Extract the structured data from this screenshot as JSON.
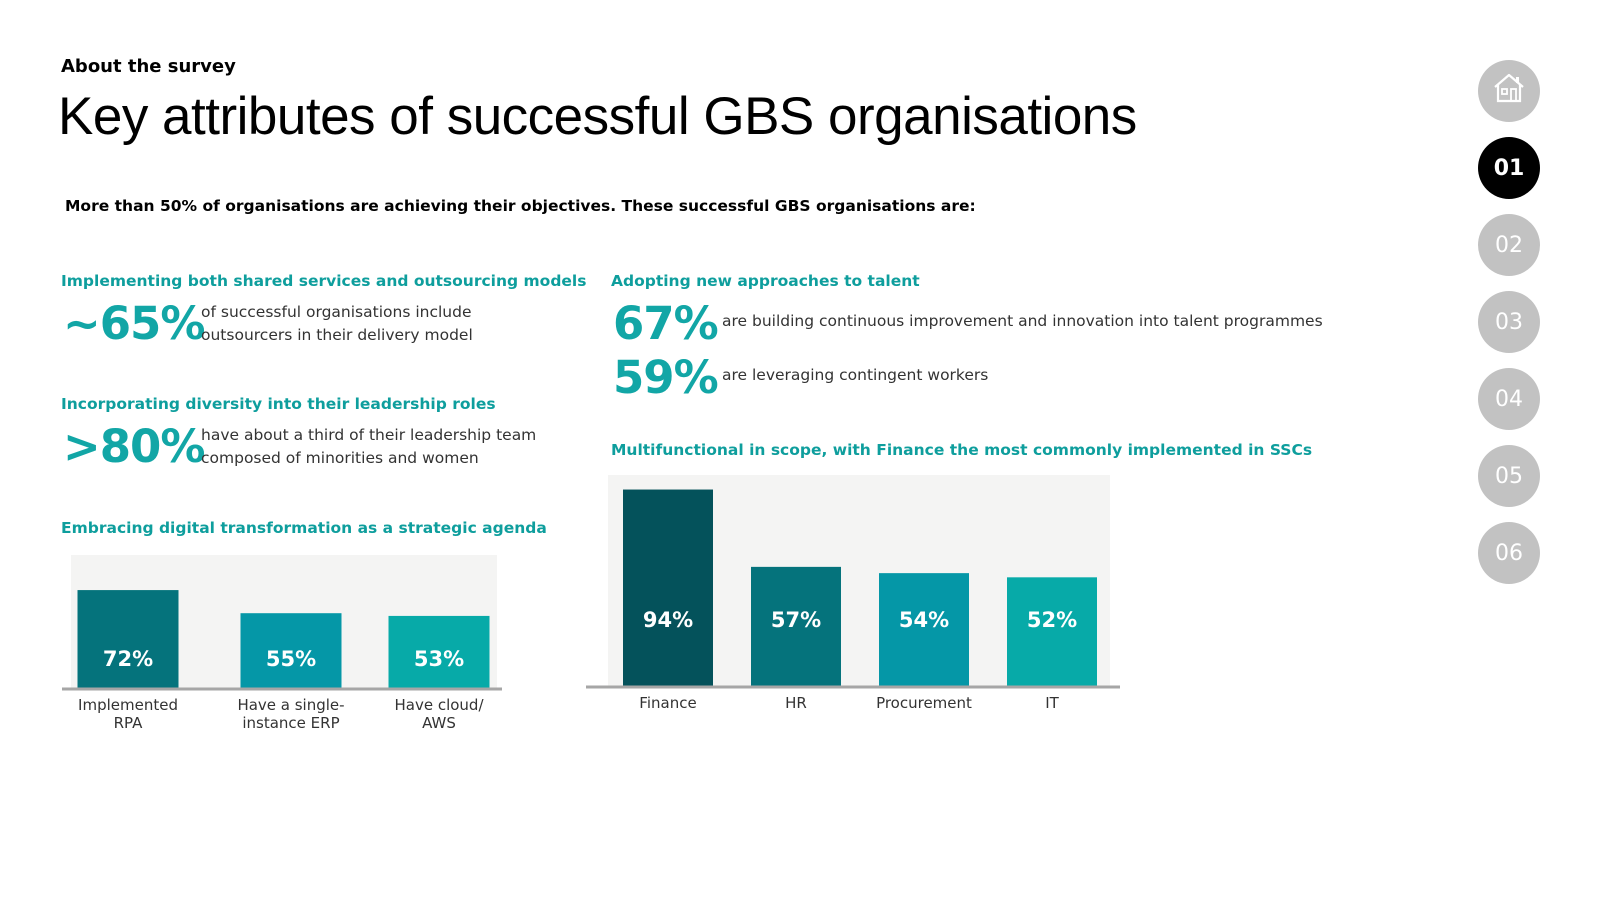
{
  "header": {
    "eyebrow": "About the survey",
    "title": "Key attributes of successful GBS organisations",
    "intro": "More than 50% of organisations are achieving their objectives. These successful GBS organisations are:"
  },
  "left": {
    "sourcing": {
      "heading": "Implementing both shared services and outsourcing models",
      "stat": "~65%",
      "line1": "of successful organisations include",
      "line2": "outsourcers in their delivery model"
    },
    "diversity": {
      "heading": "Incorporating diversity into their leadership roles",
      "stat": ">80%",
      "line1": "have about a third of their leadership team",
      "line2": "composed of minorities and women"
    },
    "digital": {
      "heading": "Embracing digital transformation as a strategic agenda"
    }
  },
  "right": {
    "talent": {
      "heading": "Adopting new approaches to talent",
      "stat1": "67%",
      "text1": "are building continuous improvement and innovation into talent programmes",
      "stat2": "59%",
      "text2": "are leveraging contingent workers"
    },
    "scope": {
      "heading": "Multifunctional in scope, with Finance the most commonly implemented in SSCs"
    }
  },
  "nav": {
    "home_icon": "home-icon",
    "items": [
      "01",
      "02",
      "03",
      "04",
      "05",
      "06"
    ],
    "active": "01"
  },
  "colors": {
    "accent_text": "#0e9e9d",
    "bar_dark": "#04525b",
    "bar_mid": "#05737c",
    "bar_teal": "#0597a7",
    "bar_light": "#07aaa8",
    "plot_bg": "#f4f4f3",
    "nav_inactive": "#c2c2c2",
    "nav_active": "#000000"
  },
  "chart_data": [
    {
      "type": "bar",
      "categories": [
        "Implemented RPA",
        "Have a single-instance ERP",
        "Have cloud/ AWS"
      ],
      "category_lines": [
        [
          "Implemented",
          "RPA"
        ],
        [
          "Have a single-",
          "instance ERP"
        ],
        [
          "Have cloud/",
          "AWS"
        ]
      ],
      "values": [
        72,
        55,
        53
      ],
      "data_labels": [
        "72%",
        "55%",
        "53%"
      ],
      "bar_colors": [
        "#05737c",
        "#0597a7",
        "#07aaa8"
      ],
      "title": "",
      "xlabel": "",
      "ylabel": "",
      "ylim": [
        0,
        100
      ],
      "grid": false
    },
    {
      "type": "bar",
      "categories": [
        "Finance",
        "HR",
        "Procurement",
        "IT"
      ],
      "category_lines": [
        [
          "Finance"
        ],
        [
          "HR"
        ],
        [
          "Procurement"
        ],
        [
          "IT"
        ]
      ],
      "values": [
        94,
        57,
        54,
        52
      ],
      "data_labels": [
        "94%",
        "57%",
        "54%",
        "52%"
      ],
      "bar_colors": [
        "#04525b",
        "#05737c",
        "#0597a7",
        "#07aaa8"
      ],
      "title": "",
      "xlabel": "",
      "ylabel": "",
      "ylim": [
        0,
        100
      ],
      "grid": false
    }
  ]
}
